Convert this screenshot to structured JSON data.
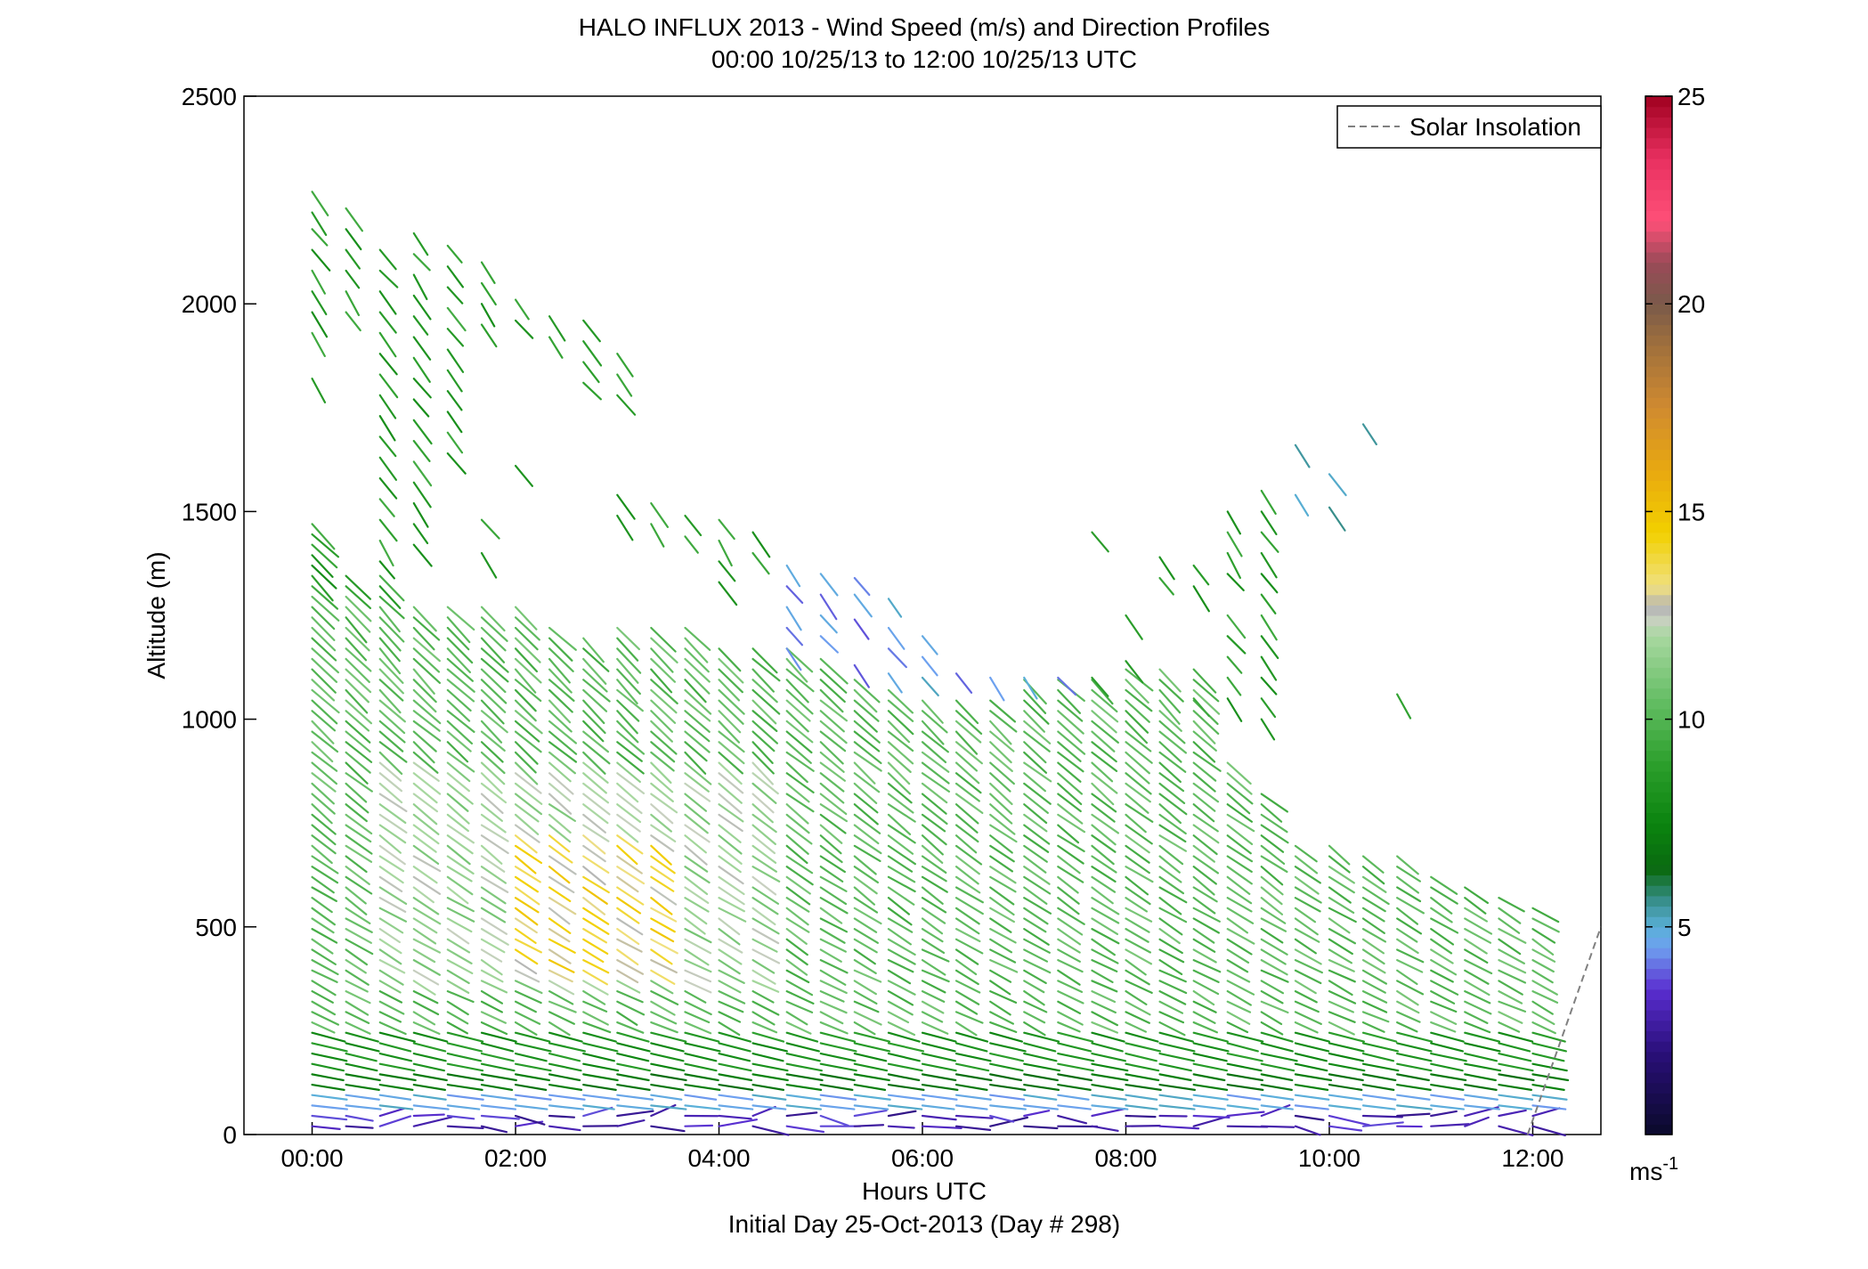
{
  "chart_data": {
    "type": "wind-barb-profile",
    "title": "HALO INFLUX 2013 - Wind Speed (m/s) and Direction Profiles",
    "subtitle": "00:00 10/25/13 to 12:00 10/25/13  UTC",
    "xlabel": "Hours UTC",
    "xlabel2": "Initial Day 25-Oct-2013 (Day # 298)",
    "ylabel": "Altitude (m)",
    "xlim": [
      -0.67,
      12.67
    ],
    "ylim": [
      0,
      2500
    ],
    "x_ticks": [
      0,
      2,
      4,
      6,
      8,
      10,
      12
    ],
    "x_tick_labels": [
      "00:00",
      "02:00",
      "04:00",
      "06:00",
      "08:00",
      "10:00",
      "12:00"
    ],
    "y_ticks": [
      0,
      500,
      1000,
      1500,
      2000,
      2500
    ],
    "y_tick_labels": [
      "0",
      "500",
      "1000",
      "1500",
      "2000",
      "2500"
    ],
    "legend": {
      "entries": [
        "Solar Insolation"
      ],
      "position": "top-right",
      "line_style": "dashed",
      "color": "#808080"
    },
    "colorbar": {
      "range": [
        0,
        25
      ],
      "ticks": [
        5,
        10,
        15,
        20,
        25
      ],
      "tick_labels": [
        "5",
        "10",
        "15",
        "20",
        "25"
      ],
      "unit_base": "ms",
      "unit_exp": "-1",
      "colormap": [
        [
          0,
          "#0a0a2a"
        ],
        [
          2,
          "#2a0f7a"
        ],
        [
          3.5,
          "#5a2ed0"
        ],
        [
          4.5,
          "#6ea0f0"
        ],
        [
          5,
          "#5ab0d8"
        ],
        [
          5.6,
          "#3a9090"
        ],
        [
          6.4,
          "#0a6a10"
        ],
        [
          7.5,
          "#0b840f"
        ],
        [
          9,
          "#2ea02e"
        ],
        [
          10.5,
          "#66be66"
        ],
        [
          12,
          "#a8d8a0"
        ],
        [
          12.4,
          "#c8d0c0"
        ],
        [
          12.7,
          "#b4b4b4"
        ],
        [
          13.2,
          "#f0e080"
        ],
        [
          14.5,
          "#f2d000"
        ],
        [
          16,
          "#e8a810"
        ],
        [
          17.5,
          "#d08a30"
        ],
        [
          19,
          "#a0703c"
        ],
        [
          20,
          "#7a5a4a"
        ],
        [
          21,
          "#9a4a58"
        ],
        [
          22,
          "#ff5078"
        ],
        [
          23.5,
          "#e83060"
        ],
        [
          25,
          "#a00020"
        ]
      ]
    },
    "solar_insolation": {
      "x": [
        11.95,
        12.67
      ],
      "y": [
        0,
        500
      ]
    },
    "profile_times": [
      0,
      0.333,
      0.667,
      1,
      1.333,
      1.667,
      2,
      2.333,
      2.667,
      3,
      3.333,
      3.667,
      4,
      4.333,
      4.667,
      5,
      5.333,
      5.667,
      6,
      6.333,
      6.667,
      7,
      7.333,
      7.667,
      8,
      8.333,
      8.667,
      9,
      9.333,
      9.667,
      10,
      10.333,
      10.667,
      11,
      11.333,
      11.667,
      12
    ],
    "top_altitudes": [
      1480,
      1360,
      1350,
      1290,
      1290,
      1290,
      1280,
      1240,
      1210,
      1230,
      1230,
      1220,
      1180,
      1180,
      1190,
      1150,
      1100,
      1090,
      1060,
      1060,
      1050,
      1100,
      1100,
      1100,
      1140,
      1120,
      1140,
      900,
      840,
      700,
      700,
      680,
      680,
      620,
      600,
      580,
      560
    ],
    "upper_altitudes": [
      [
        2270,
        2220,
        2180,
        2130,
        2080,
        2030,
        1980,
        1930,
        1820
      ],
      [
        2230,
        2180,
        2130,
        2080,
        2030,
        1980
      ],
      [
        2130,
        2080,
        2030,
        1980,
        1930,
        1880,
        1830,
        1780,
        1730,
        1680,
        1630,
        1580,
        1530,
        1480,
        1430,
        1380
      ],
      [
        2170,
        2120,
        2070,
        2020,
        1970,
        1920,
        1870,
        1820,
        1770,
        1720,
        1670,
        1620,
        1570,
        1520,
        1470,
        1420
      ],
      [
        2140,
        2090,
        2040,
        1990,
        1940,
        1890,
        1840,
        1790,
        1740,
        1690,
        1640
      ],
      [
        2100,
        2050,
        2000,
        1950,
        1480,
        1400
      ],
      [
        2010,
        1960,
        1610
      ],
      [
        1970,
        1920
      ],
      [
        1960,
        1910,
        1860,
        1810
      ],
      [
        1880,
        1830,
        1780,
        1540,
        1490
      ],
      [
        1520,
        1470
      ],
      [
        1490,
        1440
      ],
      [
        1480,
        1430,
        1380,
        1330
      ],
      [
        1450,
        1400
      ],
      [
        1370,
        1320,
        1270,
        1220,
        1170
      ],
      [
        1350,
        1300,
        1250,
        1200
      ],
      [
        1340,
        1300,
        1240,
        1130
      ],
      [
        1290,
        1220,
        1170,
        1110
      ],
      [
        1200,
        1150,
        1100
      ],
      [
        1110
      ],
      [
        1100
      ],
      [
        1100
      ],
      [
        1100
      ],
      [
        1450,
        1100
      ],
      [
        1250,
        1140
      ],
      [
        1390,
        1340
      ],
      [
        1370,
        1320,
        1050
      ],
      [
        1500,
        1450,
        1400,
        1350,
        1250,
        1200,
        1150,
        1100,
        1050
      ],
      [
        1550,
        1500,
        1450,
        1400,
        1350,
        1300,
        1250,
        1200,
        1150,
        1100,
        1050,
        1000
      ],
      [
        1660,
        1540
      ],
      [
        1590,
        1510
      ],
      [
        1710
      ],
      [
        1060
      ]
    ],
    "series_note": "Each profile is a vertical column of wind barbs; barb direction encodes wind direction, color encodes wind speed (m/s)."
  }
}
